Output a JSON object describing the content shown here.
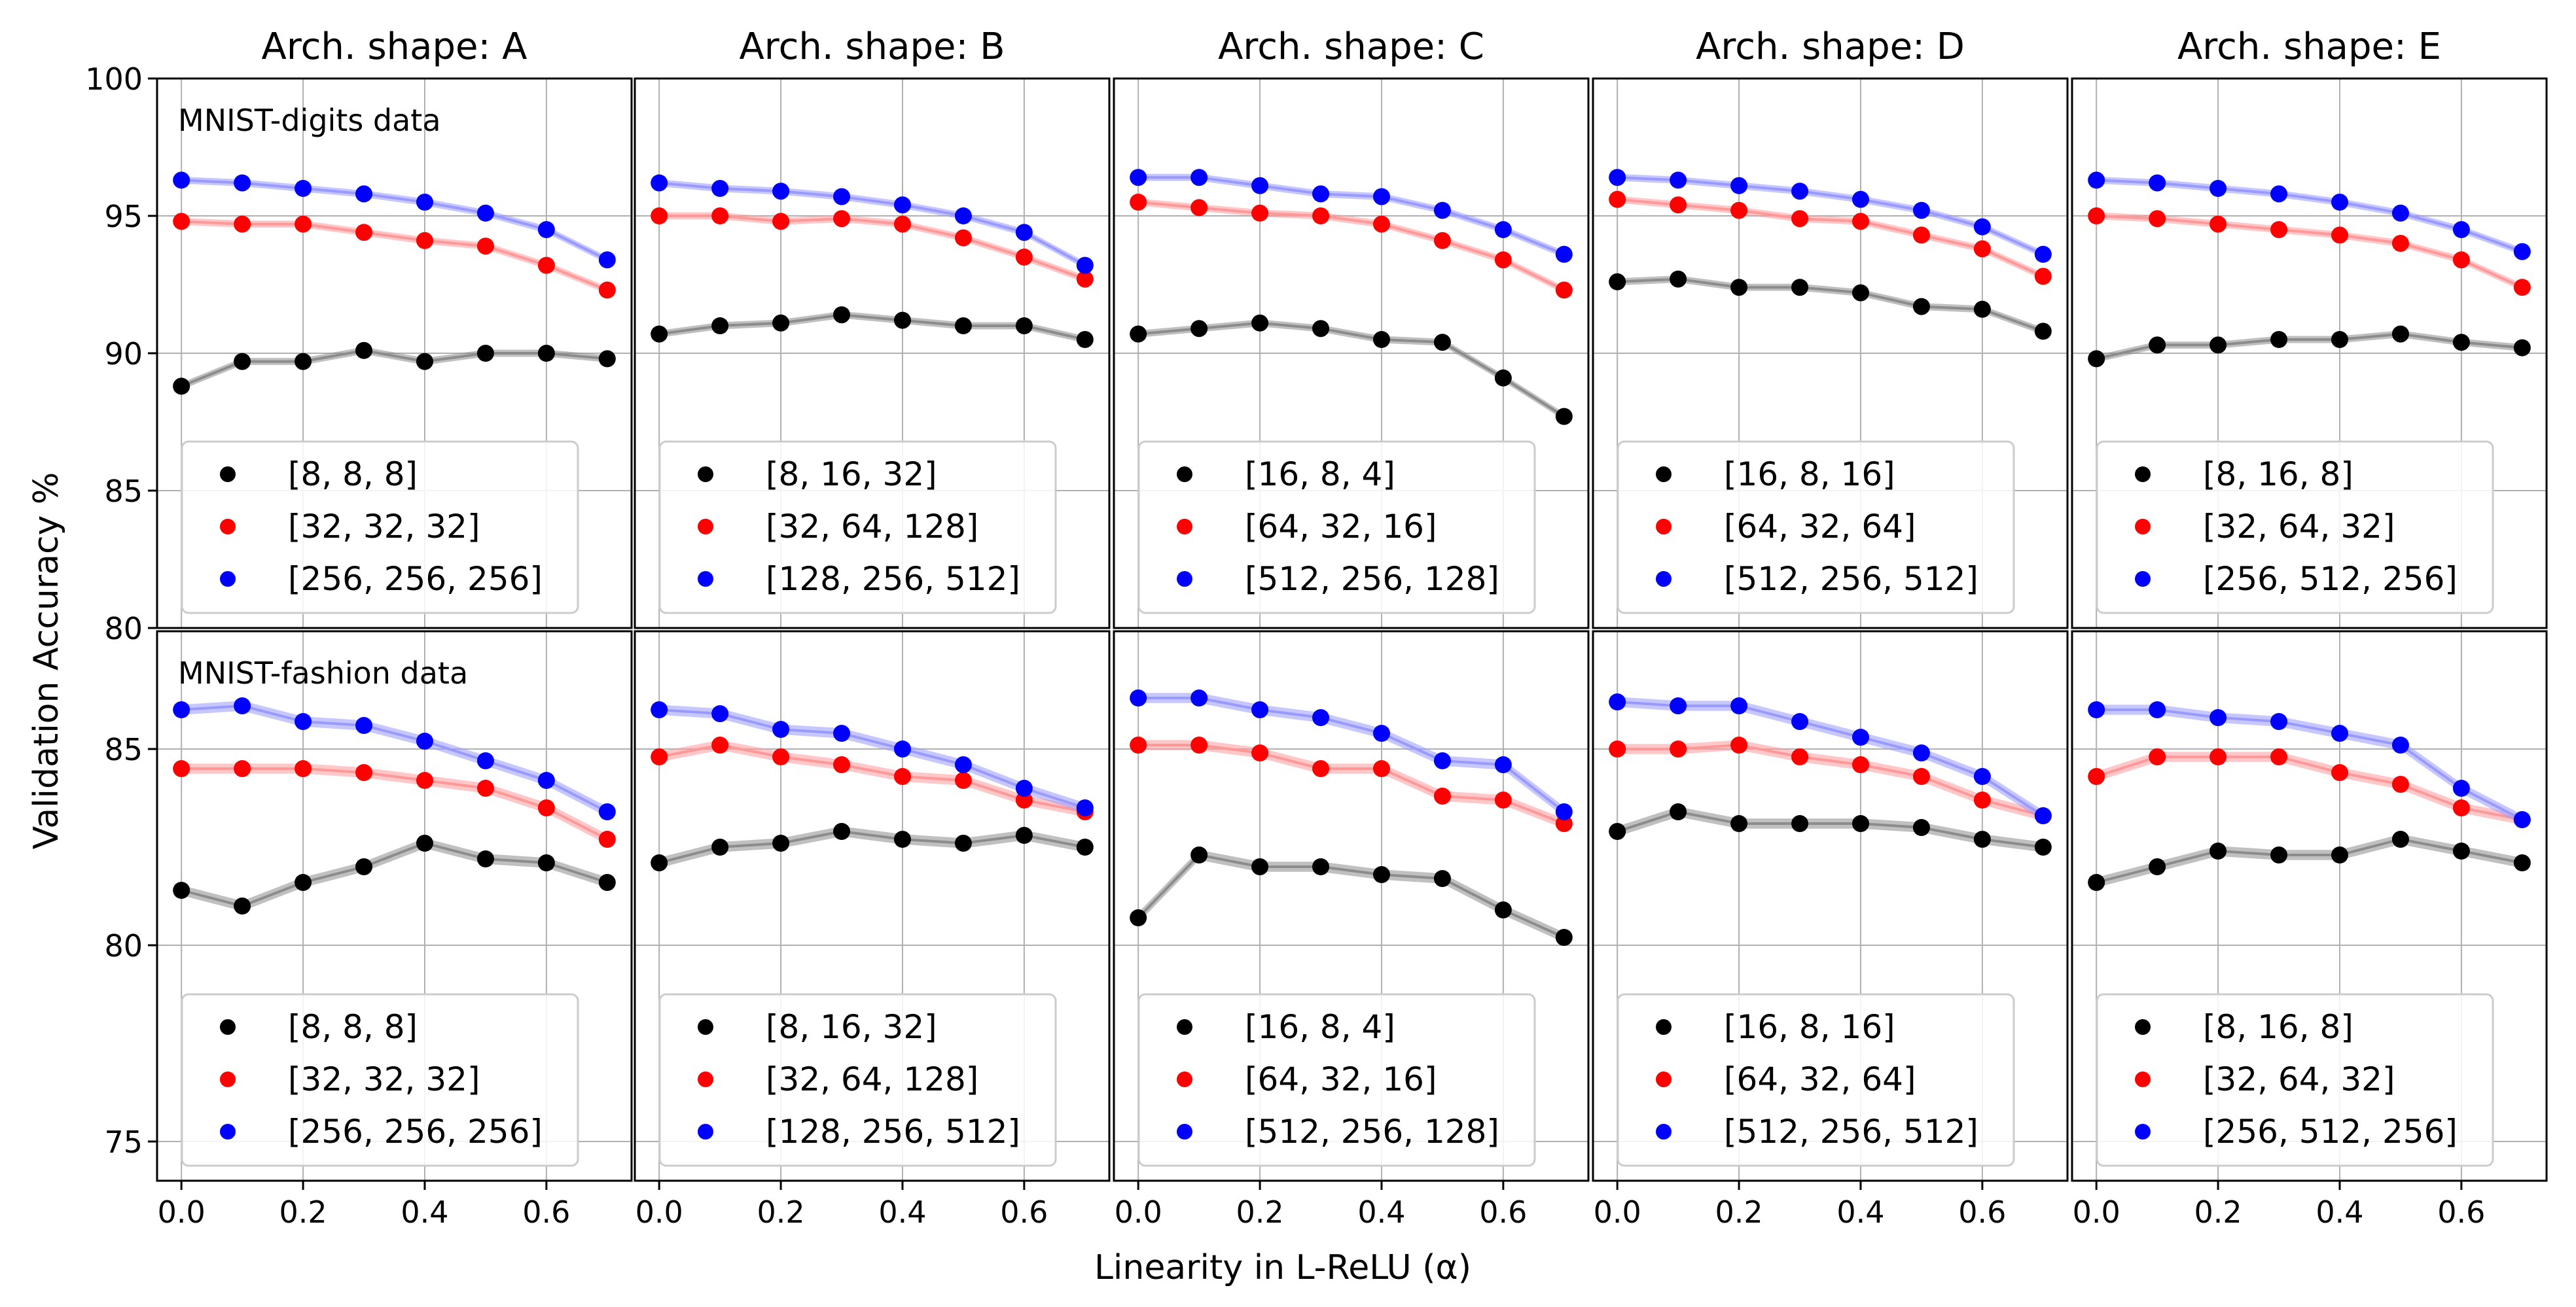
{
  "figure": {
    "ylabel": "Validation Accuracy %",
    "xlabel": "Linearity in L-ReLU (α)",
    "x_ticks": [
      "0.0",
      "0.2",
      "0.4",
      "0.6"
    ],
    "x_tick_values": [
      0,
      0.2,
      0.4,
      0.6
    ],
    "colors": {
      "small": "#000000",
      "medium": "#ff0000",
      "large": "#0000ff",
      "band_small": "#8c8c8c",
      "band_medium": "#ff9999",
      "band_large": "#9999ff",
      "grid": "#b0b0b0"
    }
  },
  "rows": [
    {
      "label": "MNIST-digits data",
      "ylim": [
        80,
        100
      ],
      "y_ticks": [
        "80",
        "85",
        "90",
        "95",
        "100"
      ],
      "y_tick_values": [
        80,
        85,
        90,
        95,
        100
      ]
    },
    {
      "label": "MNIST-fashion data",
      "ylim": [
        74,
        88
      ],
      "y_ticks": [
        "75",
        "80",
        "85"
      ],
      "y_tick_values": [
        75,
        80,
        85
      ]
    }
  ],
  "columns": [
    {
      "title": "Arch. shape: A",
      "legend": [
        "[8, 8, 8]",
        "[32, 32, 32]",
        "[256, 256, 256]"
      ]
    },
    {
      "title": "Arch. shape: B",
      "legend": [
        "[8, 16, 32]",
        "[32, 64, 128]",
        "[128, 256, 512]"
      ]
    },
    {
      "title": "Arch. shape: C",
      "legend": [
        "[16, 8, 4]",
        "[64, 32, 16]",
        "[512, 256, 128]"
      ]
    },
    {
      "title": "Arch. shape: D",
      "legend": [
        "[16, 8, 16]",
        "[64, 32, 64]",
        "[512, 256, 512]"
      ]
    },
    {
      "title": "Arch. shape: E",
      "legend": [
        "[8, 16, 8]",
        "[32, 64, 32]",
        "[256, 512, 256]"
      ]
    }
  ],
  "chart_data": {
    "type": "line",
    "x": [
      0.0,
      0.1,
      0.2,
      0.3,
      0.4,
      0.5,
      0.6,
      0.7
    ],
    "panels": [
      {
        "row": 0,
        "col": 0,
        "series": [
          {
            "name": "[8, 8, 8]",
            "values": [
              88.8,
              89.7,
              89.7,
              90.1,
              89.7,
              90.0,
              90.0,
              89.8
            ]
          },
          {
            "name": "[32, 32, 32]",
            "values": [
              94.8,
              94.7,
              94.7,
              94.4,
              94.1,
              93.9,
              93.2,
              92.3
            ]
          },
          {
            "name": "[256, 256, 256]",
            "values": [
              96.3,
              96.2,
              96.0,
              95.8,
              95.5,
              95.1,
              94.5,
              93.4
            ]
          }
        ]
      },
      {
        "row": 0,
        "col": 1,
        "series": [
          {
            "name": "[8, 16, 32]",
            "values": [
              90.7,
              91.0,
              91.1,
              91.4,
              91.2,
              91.0,
              91.0,
              90.5
            ]
          },
          {
            "name": "[32, 64, 128]",
            "values": [
              95.0,
              95.0,
              94.8,
              94.9,
              94.7,
              94.2,
              93.5,
              92.7
            ]
          },
          {
            "name": "[128, 256, 512]",
            "values": [
              96.2,
              96.0,
              95.9,
              95.7,
              95.4,
              95.0,
              94.4,
              93.2
            ]
          }
        ]
      },
      {
        "row": 0,
        "col": 2,
        "series": [
          {
            "name": "[16, 8, 4]",
            "values": [
              90.7,
              90.9,
              91.1,
              90.9,
              90.5,
              90.4,
              89.1,
              87.7
            ]
          },
          {
            "name": "[64, 32, 16]",
            "values": [
              95.5,
              95.3,
              95.1,
              95.0,
              94.7,
              94.1,
              93.4,
              92.3
            ]
          },
          {
            "name": "[512, 256, 128]",
            "values": [
              96.4,
              96.4,
              96.1,
              95.8,
              95.7,
              95.2,
              94.5,
              93.6
            ]
          }
        ]
      },
      {
        "row": 0,
        "col": 3,
        "series": [
          {
            "name": "[16, 8, 16]",
            "values": [
              92.6,
              92.7,
              92.4,
              92.4,
              92.2,
              91.7,
              91.6,
              90.8
            ]
          },
          {
            "name": "[64, 32, 64]",
            "values": [
              95.6,
              95.4,
              95.2,
              94.9,
              94.8,
              94.3,
              93.8,
              92.8
            ]
          },
          {
            "name": "[512, 256, 512]",
            "values": [
              96.4,
              96.3,
              96.1,
              95.9,
              95.6,
              95.2,
              94.6,
              93.6
            ]
          }
        ]
      },
      {
        "row": 0,
        "col": 4,
        "series": [
          {
            "name": "[8, 16, 8]",
            "values": [
              89.8,
              90.3,
              90.3,
              90.5,
              90.5,
              90.7,
              90.4,
              90.2
            ]
          },
          {
            "name": "[32, 64, 32]",
            "values": [
              95.0,
              94.9,
              94.7,
              94.5,
              94.3,
              94.0,
              93.4,
              92.4
            ]
          },
          {
            "name": "[256, 512, 256]",
            "values": [
              96.3,
              96.2,
              96.0,
              95.8,
              95.5,
              95.1,
              94.5,
              93.7
            ]
          }
        ]
      },
      {
        "row": 1,
        "col": 0,
        "series": [
          {
            "name": "[8, 8, 8]",
            "values": [
              81.4,
              81.0,
              81.6,
              82.0,
              82.6,
              82.2,
              82.1,
              81.6
            ]
          },
          {
            "name": "[32, 32, 32]",
            "values": [
              84.5,
              84.5,
              84.5,
              84.4,
              84.2,
              84.0,
              83.5,
              82.7
            ]
          },
          {
            "name": "[256, 256, 256]",
            "values": [
              86.0,
              86.1,
              85.7,
              85.6,
              85.2,
              84.7,
              84.2,
              83.4
            ]
          }
        ]
      },
      {
        "row": 1,
        "col": 1,
        "series": [
          {
            "name": "[8, 16, 32]",
            "values": [
              82.1,
              82.5,
              82.6,
              82.9,
              82.7,
              82.6,
              82.8,
              82.5
            ]
          },
          {
            "name": "[32, 64, 128]",
            "values": [
              84.8,
              85.1,
              84.8,
              84.6,
              84.3,
              84.2,
              83.7,
              83.4
            ]
          },
          {
            "name": "[128, 256, 512]",
            "values": [
              86.0,
              85.9,
              85.5,
              85.4,
              85.0,
              84.6,
              84.0,
              83.5
            ]
          }
        ]
      },
      {
        "row": 1,
        "col": 2,
        "series": [
          {
            "name": "[16, 8, 4]",
            "values": [
              80.7,
              82.3,
              82.0,
              82.0,
              81.8,
              81.7,
              80.9,
              80.2
            ]
          },
          {
            "name": "[64, 32, 16]",
            "values": [
              85.1,
              85.1,
              84.9,
              84.5,
              84.5,
              83.8,
              83.7,
              83.1
            ]
          },
          {
            "name": "[512, 256, 128]",
            "values": [
              86.3,
              86.3,
              86.0,
              85.8,
              85.4,
              84.7,
              84.6,
              83.4
            ]
          }
        ]
      },
      {
        "row": 1,
        "col": 3,
        "series": [
          {
            "name": "[16, 8, 16]",
            "values": [
              82.9,
              83.4,
              83.1,
              83.1,
              83.1,
              83.0,
              82.7,
              82.5
            ]
          },
          {
            "name": "[64, 32, 64]",
            "values": [
              85.0,
              85.0,
              85.1,
              84.8,
              84.6,
              84.3,
              83.7,
              83.3
            ]
          },
          {
            "name": "[512, 256, 512]",
            "values": [
              86.2,
              86.1,
              86.1,
              85.7,
              85.3,
              84.9,
              84.3,
              83.3
            ]
          }
        ]
      },
      {
        "row": 1,
        "col": 4,
        "series": [
          {
            "name": "[8, 16, 8]",
            "values": [
              81.6,
              82.0,
              82.4,
              82.3,
              82.3,
              82.7,
              82.4,
              82.1
            ]
          },
          {
            "name": "[32, 64, 32]",
            "values": [
              84.3,
              84.8,
              84.8,
              84.8,
              84.4,
              84.1,
              83.5,
              83.2
            ]
          },
          {
            "name": "[256, 512, 256]",
            "values": [
              86.0,
              86.0,
              85.8,
              85.7,
              85.4,
              85.1,
              84.0,
              83.2
            ]
          }
        ]
      }
    ]
  }
}
